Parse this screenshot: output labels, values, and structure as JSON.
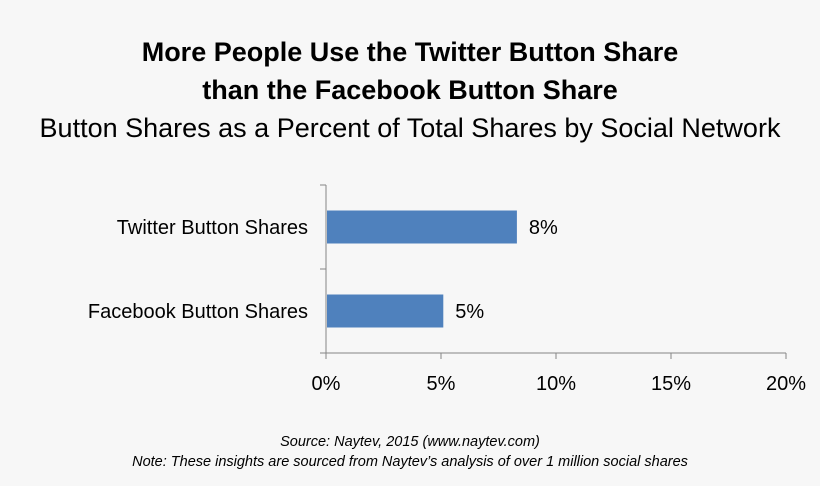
{
  "title_lines": [
    "More People Use the Twitter Button Share",
    "than the Facebook Button Share"
  ],
  "subtitle": "Button Shares as a Percent of Total Shares by Social Network",
  "source": "Source: Naytev, 2015 (www.naytev.com)",
  "note": "Note: These insights are sourced from Naytev’s analysis of over 1 million social shares",
  "colors": {
    "bar": "#4f81bd",
    "axis": "#868686",
    "background": "#f7f7f7"
  },
  "chart_data": {
    "type": "bar",
    "orientation": "horizontal",
    "title": "More People Use the Twitter Button Share than the Facebook Button Share",
    "subtitle": "Button Shares as a Percent of Total Shares by Social Network",
    "categories": [
      "Twitter Button Shares",
      "Facebook Button Shares"
    ],
    "values": [
      8.3,
      5.1
    ],
    "data_labels": [
      "8%",
      "5%"
    ],
    "xlim": [
      0,
      20
    ],
    "xticks": [
      0,
      5,
      10,
      15,
      20
    ],
    "xtick_labels": [
      "0%",
      "5%",
      "10%",
      "15%",
      "20%"
    ],
    "grid": false,
    "legend": "none"
  }
}
